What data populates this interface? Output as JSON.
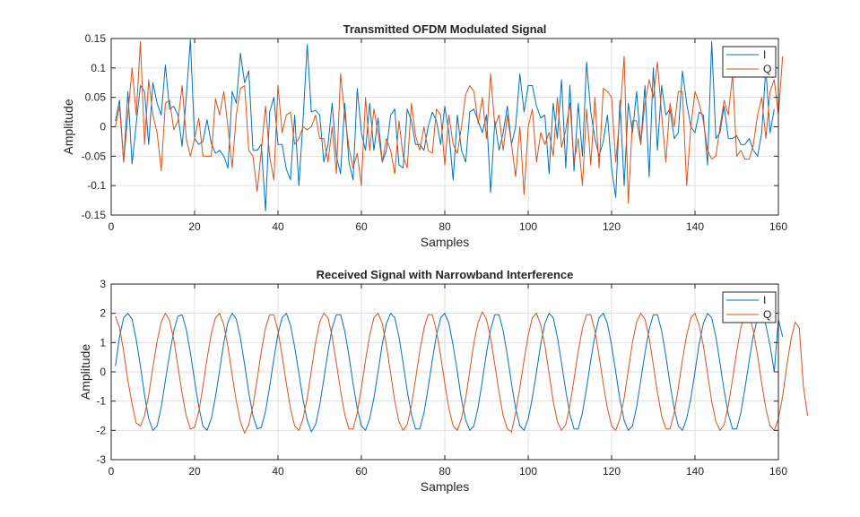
{
  "chart_data": [
    {
      "type": "line",
      "title": "Transmitted OFDM Modulated Signal",
      "xlabel": "Samples",
      "ylabel": "Amplitude",
      "xlim": [
        0,
        160
      ],
      "ylim": [
        -0.15,
        0.15
      ],
      "xticks": [
        0,
        20,
        40,
        60,
        80,
        100,
        120,
        140,
        160
      ],
      "xtick_labels": [
        "0",
        "20",
        "40",
        "60",
        "80",
        "100",
        "120",
        "140",
        "160"
      ],
      "yticks": [
        -0.15,
        -0.1,
        -0.05,
        0,
        0.05,
        0.1,
        0.15
      ],
      "ytick_labels": [
        "-0.15",
        "-0.1",
        "-0.05",
        "0",
        "0.05",
        "0.1",
        "0.15"
      ],
      "grid": true,
      "legend": "top-right",
      "series": [
        {
          "name": "I",
          "color": "#0072BD",
          "values": [
            0.01,
            0.045,
            -0.06,
            0.06,
            -0.063,
            0.005,
            0.07,
            0.06,
            -0.03,
            0.075,
            0.04,
            0.02,
            0.105,
            0.03,
            0.035,
            0.02,
            -0.033,
            0.05,
            0.148,
            -0.02,
            -0.03,
            -0.025,
            0.012,
            -0.028,
            -0.045,
            -0.04,
            -0.05,
            -0.07,
            0.06,
            0.04,
            0.125,
            0.075,
            0.095,
            -0.04,
            -0.04,
            -0.03,
            -0.143,
            0.025,
            0.05,
            -0.03,
            -0.03,
            -0.072,
            -0.09,
            0.02,
            -0.1,
            0.01,
            0.14,
            0.025,
            0.028,
            0.02,
            -0.06,
            -0.03,
            0.04,
            -0.05,
            -0.08,
            0.04,
            -0.06,
            -0.09,
            0.065,
            -0.01,
            -0.04,
            0.04,
            -0.04,
            0.015,
            -0.06,
            -0.04,
            0.02,
            0.03,
            -0.065,
            -0.07,
            0.03,
            0.01,
            -0.03,
            -0.03,
            -0.04,
            0.0,
            0.025,
            0.01,
            -0.03,
            0.035,
            -0.01,
            -0.09,
            0.02,
            -0.04,
            -0.06,
            0.025,
            0.03,
            0.01,
            -0.01,
            0.02,
            -0.112,
            0.01,
            -0.04,
            -0.01,
            0.035,
            -0.03,
            0.0,
            0.09,
            0.025,
            0.07,
            0.07,
            0.035,
            0.015,
            0.02,
            -0.08,
            0.04,
            -0.02,
            0.08,
            -0.07,
            0.07,
            -0.075,
            0.04,
            -0.05,
            0.11,
            0.025,
            -0.02,
            -0.05,
            -0.025,
            0.02,
            -0.07,
            -0.12,
            0.045,
            -0.1,
            0.04,
            -0.01,
            0.06,
            -0.03,
            0.07,
            -0.085,
            0.1,
            -0.04,
            0.07,
            0.02,
            0.03,
            -0.02,
            -0.01,
            0.095,
            0.04,
            0.0,
            -0.01,
            0.025,
            0.02,
            -0.065,
            0.145,
            -0.02,
            -0.01,
            0.035,
            -0.02,
            -0.02,
            -0.015,
            -0.03,
            -0.03,
            -0.02,
            -0.04,
            -0.05,
            -0.01,
            0.1,
            -0.01,
            0.03
          ]
        },
        {
          "name": "Q",
          "color": "#D95319",
          "values": [
            0.0,
            0.035,
            -0.06,
            0.02,
            0.1,
            0.02,
            0.145,
            -0.03,
            0.08,
            0.02,
            -0.01,
            -0.075,
            0.04,
            0.045,
            -0.005,
            0.01,
            0.07,
            -0.02,
            -0.05,
            -0.02,
            0.015,
            -0.05,
            -0.05,
            -0.05,
            0.048,
            0.02,
            0.06,
            0.0,
            -0.07,
            0.02,
            0.065,
            0.07,
            -0.04,
            -0.05,
            -0.11,
            -0.04,
            0.035,
            -0.05,
            -0.09,
            0.07,
            -0.01,
            0.02,
            0.025,
            -0.03,
            -0.02,
            0.0,
            -0.005,
            0.0,
            0.02,
            -0.02,
            -0.02,
            -0.06,
            0.0,
            -0.08,
            0.09,
            0.02,
            -0.035,
            -0.07,
            -0.045,
            -0.1,
            0.05,
            -0.04,
            0.03,
            -0.01,
            -0.06,
            -0.02,
            -0.04,
            -0.08,
            0.01,
            -0.05,
            -0.07,
            0.04,
            -0.015,
            -0.04,
            0.0,
            -0.04,
            -0.045,
            0.03,
            0.02,
            -0.065,
            0.02,
            -0.03,
            -0.045,
            0.0,
            0.055,
            0.07,
            0.06,
            0.005,
            0.05,
            -0.02,
            0.09,
            0.0,
            0.02,
            -0.04,
            0.02,
            -0.03,
            -0.085,
            0.0,
            -0.115,
            0.0,
            0.03,
            -0.06,
            -0.01,
            -0.03,
            -0.01,
            -0.05,
            0.05,
            -0.035,
            -0.005,
            0.04,
            -0.06,
            -0.02,
            -0.1,
            0.03,
            -0.065,
            0.05,
            -0.07,
            0.065,
            0.06,
            0.05,
            -0.06,
            0.02,
            0.12,
            -0.13,
            0.01,
            0.01,
            -0.03,
            0.04,
            0.08,
            0.05,
            0.11,
            0.02,
            -0.06,
            0.04,
            0.0,
            0.06,
            0.06,
            -0.1,
            0.0,
            0.06,
            0.04,
            0.01,
            -0.04,
            -0.055,
            -0.05,
            0.0,
            0.045,
            0.02,
            0.09,
            -0.05,
            -0.04,
            -0.055,
            -0.055,
            -0.03,
            0.02,
            0.05,
            -0.02,
            0.06,
            0.08,
            0.02,
            0.12
          ]
        }
      ]
    },
    {
      "type": "line",
      "title": "Received Signal with Narrowband Interference",
      "xlabel": "Samples",
      "ylabel": "Amplitude",
      "xlim": [
        0,
        160
      ],
      "ylim": [
        -3,
        3
      ],
      "xticks": [
        0,
        20,
        40,
        60,
        80,
        100,
        120,
        140,
        160
      ],
      "xtick_labels": [
        "0",
        "20",
        "40",
        "60",
        "80",
        "100",
        "120",
        "140",
        "160"
      ],
      "yticks": [
        -3,
        -2,
        -1,
        0,
        1,
        2,
        3
      ],
      "ytick_labels": [
        "-3",
        "-2",
        "-1",
        "0",
        "1",
        "2",
        "3"
      ],
      "grid": true,
      "legend": "top-right",
      "series": [
        {
          "name": "I",
          "color": "#0072BD",
          "values": [
            0.2,
            1.2,
            1.85,
            2.0,
            1.8,
            1.1,
            0.2,
            -0.8,
            -1.6,
            -2.0,
            -1.85,
            -1.2,
            -0.3,
            0.6,
            1.4,
            1.9,
            1.95,
            1.45,
            0.65,
            -0.3,
            -1.2,
            -1.85,
            -2.0,
            -1.6,
            -0.85,
            0.05,
            1.0,
            1.7,
            2.0,
            1.8,
            1.15,
            0.25,
            -0.7,
            -1.5,
            -1.95,
            -1.9,
            -1.35,
            -0.5,
            0.45,
            1.3,
            1.85,
            2.0,
            1.6,
            0.85,
            -0.05,
            -0.95,
            -1.65,
            -2.05,
            -1.8,
            -1.15,
            -0.25,
            0.7,
            1.5,
            1.95,
            1.95,
            1.4,
            0.55,
            -0.4,
            -1.25,
            -1.85,
            -2.0,
            -1.6,
            -0.9,
            0.0,
            0.95,
            1.65,
            2.0,
            1.85,
            1.2,
            0.3,
            -0.65,
            -1.45,
            -1.95,
            -1.95,
            -1.4,
            -0.55,
            0.4,
            1.25,
            1.85,
            2.0,
            1.65,
            0.9,
            0.0,
            -0.95,
            -1.65,
            -2.0,
            -1.85,
            -1.2,
            -0.3,
            0.65,
            1.45,
            1.95,
            1.95,
            1.4,
            0.55,
            -0.4,
            -1.25,
            -1.85,
            -2.0,
            -1.6,
            -0.9,
            0.0,
            0.95,
            1.65,
            2.0,
            1.85,
            1.2,
            0.3,
            -0.65,
            -1.45,
            -1.95,
            -1.95,
            -1.4,
            -0.55,
            0.4,
            1.25,
            1.85,
            2.0,
            1.65,
            0.9,
            0.0,
            -0.95,
            -1.65,
            -2.0,
            -1.85,
            -1.2,
            -0.3,
            0.65,
            1.45,
            1.95,
            1.95,
            1.4,
            0.55,
            -0.4,
            -1.25,
            -1.85,
            -2.0,
            -1.6,
            -0.9,
            0.0,
            0.95,
            1.65,
            2.0,
            1.85,
            1.2,
            0.3,
            -0.65,
            -1.45,
            -1.95,
            -1.95,
            -1.4,
            -0.55,
            0.4,
            1.25,
            1.85,
            2.05,
            1.6,
            0.9,
            0.0,
            1.8,
            1.2
          ]
        },
        {
          "name": "Q",
          "color": "#D95319",
          "values": [
            1.9,
            1.5,
            0.7,
            -0.3,
            -1.1,
            -1.75,
            -1.85,
            -1.5,
            -0.8,
            0.15,
            1.05,
            1.7,
            2.0,
            1.75,
            1.1,
            0.2,
            -0.75,
            -1.5,
            -1.95,
            -1.9,
            -1.35,
            -0.5,
            0.45,
            1.3,
            1.85,
            2.0,
            1.6,
            0.85,
            -0.1,
            -1.0,
            -1.7,
            -2.1,
            -1.8,
            -1.15,
            -0.25,
            0.7,
            1.5,
            1.95,
            1.95,
            1.4,
            0.55,
            -0.4,
            -1.25,
            -1.85,
            -2.0,
            -1.6,
            -0.9,
            0.05,
            1.0,
            1.7,
            2.0,
            1.85,
            1.2,
            0.3,
            -0.65,
            -1.45,
            -1.95,
            -1.95,
            -1.4,
            -0.55,
            0.4,
            1.25,
            1.85,
            2.0,
            1.65,
            0.9,
            -0.05,
            -1.0,
            -1.7,
            -2.0,
            -1.8,
            -1.15,
            -0.25,
            0.7,
            1.5,
            1.95,
            1.95,
            1.4,
            0.55,
            -0.4,
            -1.25,
            -1.85,
            -2.0,
            -1.6,
            -0.9,
            0.05,
            1.0,
            1.7,
            2.05,
            1.8,
            1.15,
            0.25,
            -0.7,
            -1.5,
            -1.95,
            -2.05,
            -1.4,
            -0.55,
            0.4,
            1.25,
            1.85,
            2.0,
            1.6,
            0.9,
            -0.05,
            -1.0,
            -1.7,
            -2.0,
            -1.8,
            -1.15,
            -0.25,
            0.7,
            1.5,
            1.95,
            1.95,
            1.4,
            0.55,
            -0.4,
            -1.25,
            -1.85,
            -2.0,
            -1.6,
            -0.9,
            0.05,
            1.0,
            1.7,
            2.0,
            1.8,
            1.15,
            0.25,
            -0.7,
            -1.5,
            -1.95,
            -1.95,
            -1.4,
            -0.55,
            0.4,
            1.25,
            1.85,
            2.0,
            1.6,
            0.9,
            -0.05,
            -1.0,
            -1.7,
            -2.0,
            -1.8,
            -1.15,
            -0.25,
            0.7,
            1.5,
            1.95,
            1.95,
            1.4,
            0.55,
            -0.4,
            -1.25,
            -1.85,
            -2.0,
            -1.6,
            -0.85,
            0.2,
            1.1,
            1.7,
            1.5,
            -0.5,
            -1.5
          ]
        }
      ]
    }
  ]
}
